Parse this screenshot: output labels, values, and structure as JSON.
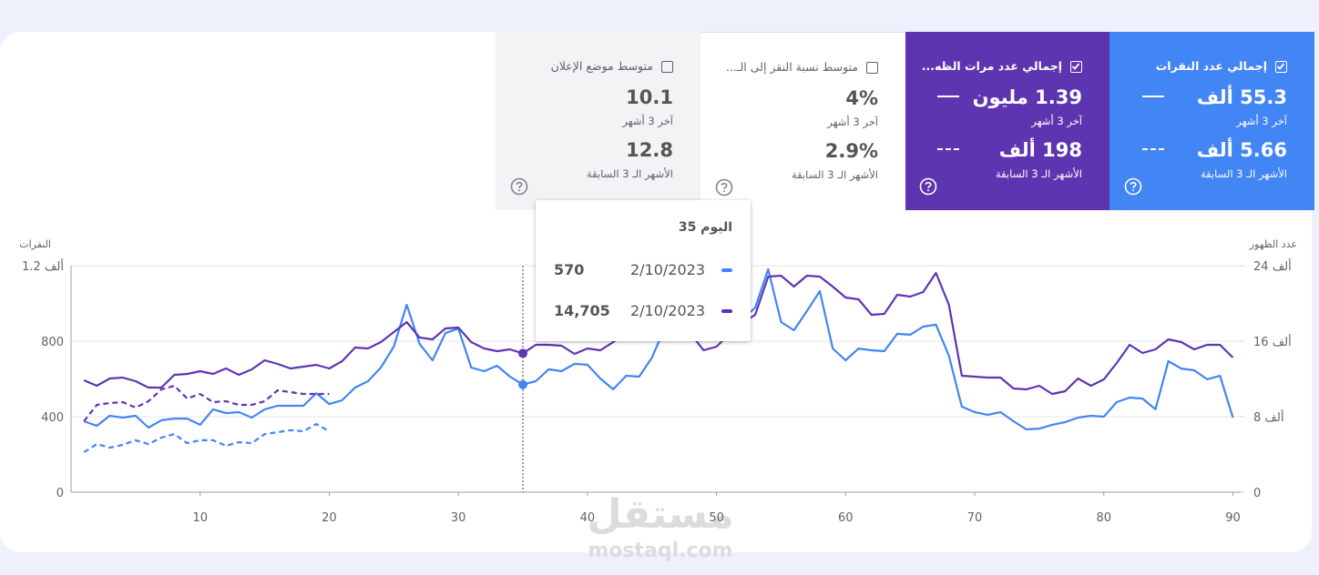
{
  "cards": [
    {
      "title": "إجمالي عدد النقرات",
      "checked": true,
      "color": "#4285f4",
      "current": "55.3 ألف",
      "current_label": "آخر 3 أشهر",
      "previous": "5.66 ألف",
      "previous_label": "الأشهر الـ 3 السابقة"
    },
    {
      "title": "إجمالي عدد مرات الظه...",
      "checked": true,
      "color": "#5e35b1",
      "current": "1.39 مليون",
      "current_label": "آخر 3 أشهر",
      "previous": "198 ألف",
      "previous_label": "الأشهر الـ 3 السابقة"
    },
    {
      "title": "متوسط نسبة النقر إلى الـ...",
      "checked": false,
      "color": "#ffffff",
      "current": "4%",
      "current_label": "آخر 3 أشهر",
      "previous": "2.9%",
      "previous_label": "الأشهر الـ 3 السابقة"
    },
    {
      "title": "متوسط موضع الإعلان",
      "checked": false,
      "color": "#f1f3f4",
      "current": "10.1",
      "current_label": "آخر 3 أشهر",
      "previous": "12.8",
      "previous_label": "الأشهر الـ 3 السابقة"
    }
  ],
  "chart_data": {
    "type": "line",
    "y_label": "النقرات",
    "y2_label": "عدد الظهور",
    "x": [
      1,
      2,
      3,
      4,
      5,
      6,
      7,
      8,
      9,
      10,
      11,
      12,
      13,
      14,
      15,
      16,
      17,
      18,
      19,
      20,
      21,
      22,
      23,
      24,
      25,
      26,
      27,
      28,
      29,
      30,
      31,
      32,
      33,
      34,
      35,
      36,
      37,
      38,
      39,
      40,
      41,
      42,
      43,
      44,
      45,
      46,
      47,
      48,
      49,
      50,
      51,
      52,
      53,
      54,
      55,
      56,
      57,
      58,
      59,
      60,
      61,
      62,
      63,
      64,
      65,
      66,
      67,
      68,
      69,
      70,
      71,
      72,
      73,
      74,
      75,
      76,
      77,
      78,
      79,
      80,
      81,
      82,
      83,
      84,
      85,
      86,
      87,
      88,
      89,
      90
    ],
    "xlim": [
      0,
      90.6
    ],
    "xticks": [
      10,
      20,
      30,
      40,
      50,
      60,
      70,
      80,
      90
    ],
    "ylim": [
      0,
      1200
    ],
    "yticks": [
      0,
      400,
      800,
      {
        "value": 1200,
        "label": "1.2 ألف"
      }
    ],
    "y2lim": [
      0,
      24000
    ],
    "y2ticks": [
      0,
      {
        "value": 8000,
        "label": "8 ألف"
      },
      {
        "value": 16000,
        "label": "16 ألف"
      },
      {
        "value": 24000,
        "label": "24 ألف"
      }
    ],
    "grid": true,
    "series": [
      {
        "color": "#4285f4",
        "dashed": false,
        "values": [
          376,
          352,
          405,
          395,
          405,
          342,
          381,
          390,
          390,
          357,
          439,
          419,
          424,
          395,
          439,
          458,
          458,
          458,
          525,
          467,
          487,
          554,
          588,
          660,
          771,
          993,
          786,
          699,
          843,
          867,
          660,
          641,
          670,
          612,
          570,
          588,
          651,
          641,
          680,
          675,
          602,
          545,
          617,
          612,
          713,
          872,
          988,
          945,
          839,
          853,
          872,
          916,
          978,
          1181,
          901,
          858,
          959,
          1065,
          761,
          699,
          761,
          752,
          747,
          839,
          834,
          877,
          887,
          723,
          453,
          424,
          410,
          424,
          376,
          333,
          337,
          357,
          371,
          395,
          405,
          400,
          477,
          501,
          496,
          439,
          694,
          655,
          646,
          598,
          617,
          395
        ]
      },
      {
        "color": "#5e35b1",
        "dashed": false,
        "axis": "y2",
        "values": [
          11856,
          11278,
          12049,
          12145,
          11760,
          11085,
          11085,
          12434,
          12531,
          12820,
          12531,
          13109,
          12434,
          13013,
          13977,
          13591,
          13109,
          13302,
          13495,
          13109,
          13880,
          15326,
          15230,
          15904,
          16965,
          18025,
          16386,
          16194,
          17350,
          17447,
          15904,
          15230,
          14940,
          15133,
          14705,
          15615,
          15615,
          15519,
          14651,
          15230,
          15037,
          15904,
          16772,
          17061,
          17736,
          17447,
          16483,
          16772,
          15037,
          15422,
          16772,
          17929,
          18796,
          22844,
          22941,
          21784,
          22941,
          22844,
          21784,
          20627,
          20434,
          18796,
          18893,
          20917,
          20724,
          21206,
          23230,
          19856,
          12338,
          12241,
          12145,
          12145,
          10988,
          10892,
          11278,
          10410,
          10699,
          12049,
          11278,
          11952,
          13687,
          15615,
          14747,
          15133,
          16194,
          15904,
          15133,
          15615,
          15615,
          14266
        ]
      },
      {
        "color": "#4285f4",
        "dashed": true,
        "values": [
          212,
          255,
          236,
          251,
          275,
          255,
          289,
          308,
          260,
          275,
          275,
          246,
          265,
          260,
          308,
          318,
          328,
          323,
          361,
          323,
          null,
          null,
          null,
          null,
          null,
          null,
          null,
          null,
          null,
          null,
          null,
          null,
          null,
          null,
          null,
          null,
          null,
          null,
          null,
          null,
          null,
          null,
          null,
          null,
          null,
          null,
          null,
          null,
          null,
          null,
          null,
          null,
          null,
          null,
          null,
          null,
          null,
          null,
          null,
          null,
          null,
          null,
          null,
          null,
          null,
          null,
          null,
          null,
          null,
          null,
          null,
          null,
          null,
          null,
          null,
          null,
          null,
          null,
          null,
          null,
          null,
          null,
          null,
          null,
          null,
          null,
          null,
          null,
          null,
          null
        ]
      },
      {
        "color": "#5e35b1",
        "dashed": true,
        "axis": "y2",
        "values": [
          7518,
          9253,
          9446,
          9543,
          8964,
          9639,
          10892,
          11278,
          9928,
          10410,
          9543,
          9639,
          9253,
          9253,
          9639,
          10796,
          10603,
          10410,
          10410,
          10410,
          null,
          null,
          null,
          null,
          null,
          null,
          null,
          null,
          null,
          null,
          null,
          null,
          null,
          null,
          null,
          null,
          null,
          null,
          null,
          null,
          null,
          null,
          null,
          null,
          null,
          null,
          null,
          null,
          null,
          null,
          null,
          null,
          null,
          null,
          null,
          null,
          null,
          null,
          null,
          null,
          null,
          null,
          null,
          null,
          null,
          null,
          null,
          null,
          null,
          null,
          null,
          null,
          null,
          null,
          null,
          null,
          null,
          null,
          null,
          null,
          null,
          null,
          null,
          null,
          null,
          null,
          null,
          null,
          null,
          null
        ]
      }
    ],
    "highlight_index": 34
  },
  "tooltip": {
    "title": "اليوم 35",
    "rows": [
      {
        "date": "2/10/2023",
        "value": "570",
        "color": "#4285f4"
      },
      {
        "date": "2/10/2023",
        "value": "14,705",
        "color": "#5e35b1"
      }
    ]
  },
  "watermark": {
    "logo": "مستقل",
    "site": "mostaql.com"
  }
}
